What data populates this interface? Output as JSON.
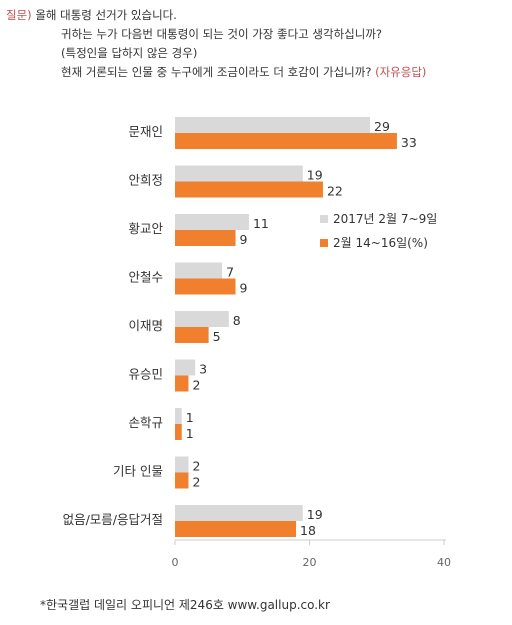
{
  "question": {
    "tag": "질문)",
    "line1": "올해 대통령 선거가 있습니다.",
    "line2": "귀하는 누가 다음번 대통령이 되는 것이 가장 좋다고 생각하십니까?",
    "line3": "(특정인을 답하지 않은 경우)",
    "line4": "현재 거론되는 인물 중 누구에게 조금이라도 더 호감이 가십니까?",
    "line4_note": "(자유응답)"
  },
  "source": "*한국갤럽 데일리 오피니언 제246호 www.gallup.co.kr",
  "colors": {
    "series1": "#d9d9d9",
    "series2": "#f07f2e"
  },
  "chart_data": {
    "type": "bar",
    "orientation": "horizontal",
    "categories": [
      "문재인",
      "안희정",
      "황교안",
      "안철수",
      "이재명",
      "유승민",
      "손학규",
      "기타 인물",
      "없음/모름/응답거절"
    ],
    "series": [
      {
        "name": "2017년 2월 7~9일",
        "values": [
          29,
          19,
          11,
          7,
          8,
          3,
          1,
          2,
          19
        ]
      },
      {
        "name": "2월 14~16일(%)",
        "values": [
          33,
          22,
          9,
          9,
          5,
          2,
          1,
          2,
          18
        ]
      }
    ],
    "xlim": [
      0,
      40
    ],
    "xticks": [
      0,
      20,
      40
    ],
    "grid": false,
    "legend": "right"
  }
}
